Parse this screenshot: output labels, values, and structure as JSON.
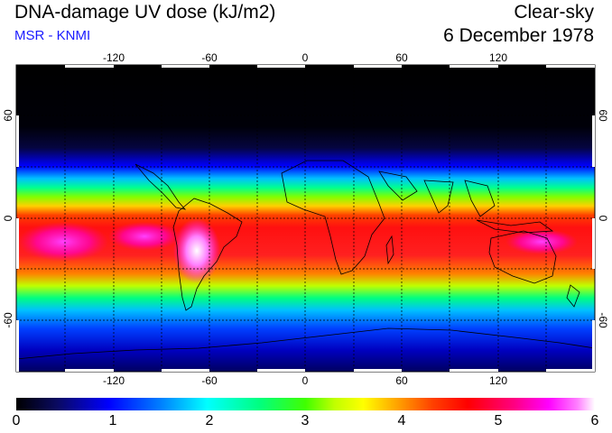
{
  "header": {
    "title": "DNA-damage UV dose (kJ/m2)",
    "subtitle": "MSR - KNMI",
    "condition": "Clear-sky",
    "date": "6 December 1978"
  },
  "map": {
    "lon_ticks": [
      "-120",
      "-60",
      "0",
      "60",
      "120"
    ],
    "lat_ticks": [
      "60",
      "0",
      "-60"
    ],
    "lon_range": [
      -180,
      180
    ],
    "lat_range": [
      -90,
      90
    ]
  },
  "colorbar": {
    "labels": [
      "0",
      "1",
      "2",
      "3",
      "4",
      "5",
      "6"
    ],
    "min": 0,
    "max": 6,
    "colors": [
      "#000000",
      "#0a0a60",
      "#0000ff",
      "#0080ff",
      "#00ffff",
      "#00ff80",
      "#40ff00",
      "#c0ff00",
      "#ffff00",
      "#ffa000",
      "#ff4000",
      "#ff0000",
      "#ff0080",
      "#ff00ff",
      "#ff80ff",
      "#ffffff"
    ]
  }
}
